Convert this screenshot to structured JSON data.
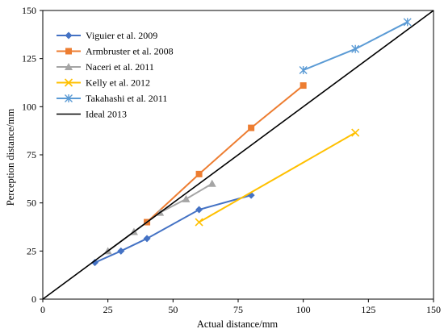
{
  "chart_data": {
    "type": "line",
    "xlabel": "Actual distance/mm",
    "ylabel": "Perception distance/mm",
    "xlim": [
      0,
      150
    ],
    "ylim": [
      0,
      150
    ],
    "xticks": [
      "0",
      "25",
      "50",
      "75",
      "100",
      "125",
      "150"
    ],
    "yticks": [
      "0",
      "25",
      "50",
      "75",
      "100",
      "125",
      "150"
    ],
    "grid": false,
    "legend_position": "top-left",
    "series": [
      {
        "name": "Viguier et al. 2009",
        "color": "#4472C4",
        "marker": "diamond",
        "x": [
          20,
          30,
          40,
          60,
          80
        ],
        "y": [
          19,
          25,
          31.5,
          46.5,
          54
        ]
      },
      {
        "name": "Armbruster et al. 2008",
        "color": "#ED7D31",
        "marker": "square",
        "x": [
          40,
          60,
          80,
          100
        ],
        "y": [
          40,
          65,
          89,
          111
        ]
      },
      {
        "name": "Naceri et al. 2011",
        "color": "#A5A5A5",
        "marker": "triangle",
        "x": [
          25,
          35,
          45,
          55,
          65
        ],
        "y": [
          25,
          35,
          45,
          52,
          60
        ]
      },
      {
        "name": "Kelly et al. 2012",
        "color": "#FFC000",
        "marker": "x",
        "x": [
          60,
          120
        ],
        "y": [
          40,
          86.5
        ]
      },
      {
        "name": "Takahashi et al. 2011",
        "color": "#5B9BD5",
        "marker": "star",
        "x": [
          100,
          120,
          140
        ],
        "y": [
          119,
          130,
          144
        ]
      },
      {
        "name": "Ideal 2013",
        "color": "#000000",
        "marker": "none",
        "x": [
          0,
          150
        ],
        "y": [
          0,
          150
        ]
      }
    ]
  }
}
